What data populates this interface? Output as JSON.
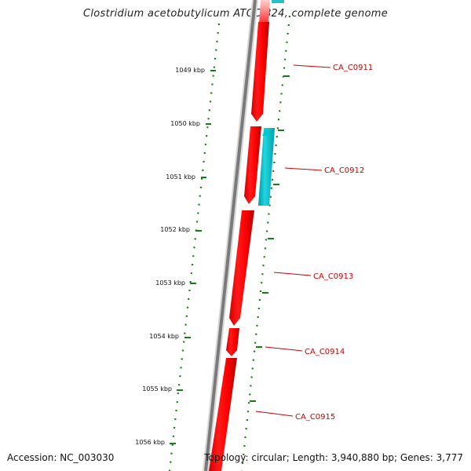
{
  "title": "Clostridium acetobutylicum ATCC 824, complete genome",
  "footer": {
    "accession": "Accession: NC_003030",
    "summary": "Topology: circular; Length: 3,940,880 bp; Genes: 3,777"
  },
  "ticks": [
    "1049 kbp",
    "1050 kbp",
    "1051 kbp",
    "1052 kbp",
    "1053 kbp",
    "1054 kbp",
    "1055 kbp",
    "1056 kbp"
  ],
  "genes": [
    {
      "label": "CA_C0911",
      "strand": "forward",
      "color": "#ff0000"
    },
    {
      "label": "CA_C0912",
      "strand": "reverse",
      "color": "#00bcc8"
    },
    {
      "label": "CA_C0913",
      "strand": "forward",
      "color": "#ff0000"
    },
    {
      "label": "CA_C0914",
      "strand": "forward",
      "color": "#ff0000"
    },
    {
      "label": "CA_C0915",
      "strand": "forward",
      "color": "#ff0000"
    }
  ],
  "colors": {
    "backbone": "#7a7a7a",
    "tick": "#1a7a1a",
    "label": "#cc0000"
  }
}
